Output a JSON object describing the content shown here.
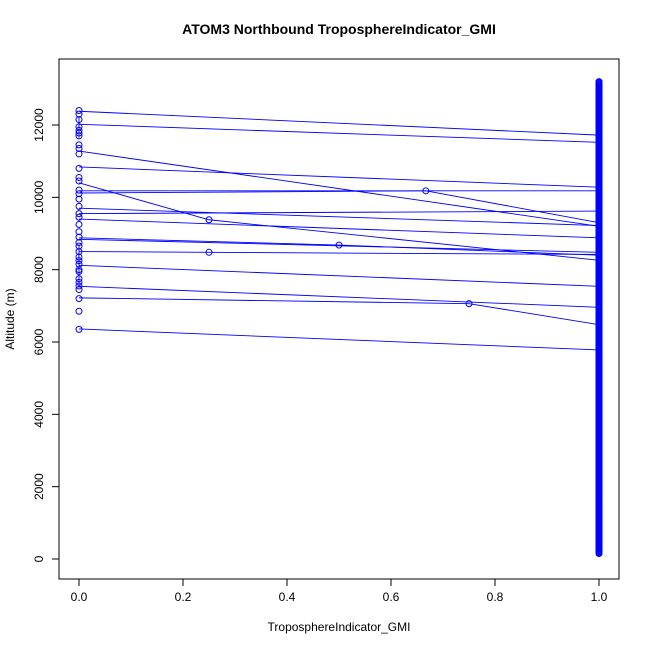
{
  "chart_data": {
    "type": "scatter",
    "title": "ATOM3 Northbound TroposphereIndicator_GMI",
    "xlabel": "TroposphereIndicator_GMI",
    "ylabel": "Altitude (m)",
    "xlim": [
      0.0,
      1.0
    ],
    "ylim": [
      0,
      13000
    ],
    "x_ticks": [
      0.0,
      0.2,
      0.4,
      0.6,
      0.8,
      1.0
    ],
    "x_tick_labels": [
      "0.0",
      "0.2",
      "0.4",
      "0.6",
      "0.8",
      "1.0"
    ],
    "y_ticks": [
      0,
      2000,
      4000,
      6000,
      8000,
      10000,
      12000
    ],
    "y_tick_labels": [
      "0",
      "2000",
      "4000",
      "6000",
      "8000",
      "10000",
      "12000"
    ],
    "grid": false,
    "legend": "none",
    "colors": {
      "series": "#0000ff",
      "axis": "#000000"
    },
    "series": [
      {
        "markers": "open-circle",
        "connected": true,
        "points": [
          [
            0.0,
            12400
          ],
          [
            0.0,
            12300
          ],
          [
            0.0,
            12150
          ],
          [
            0.0,
            11950
          ],
          [
            0.0,
            11850
          ],
          [
            0.0,
            11780
          ],
          [
            0.0,
            11700
          ],
          [
            0.0,
            11450
          ],
          [
            0.0,
            11350
          ],
          [
            0.0,
            11200
          ],
          [
            0.0,
            10800
          ],
          [
            0.0,
            10550
          ],
          [
            0.0,
            10450
          ],
          [
            0.0,
            10200
          ],
          [
            0.0,
            10100
          ],
          [
            0.0,
            9950
          ],
          [
            0.0,
            9750
          ],
          [
            0.0,
            9550
          ],
          [
            0.0,
            9450
          ],
          [
            0.0,
            9250
          ],
          [
            0.0,
            9050
          ],
          [
            0.0,
            8900
          ],
          [
            0.0,
            8750
          ],
          [
            0.0,
            8650
          ],
          [
            0.0,
            8500
          ],
          [
            0.0,
            8350
          ],
          [
            0.0,
            8250
          ],
          [
            0.0,
            8150
          ],
          [
            0.0,
            8000
          ],
          [
            0.0,
            7950
          ],
          [
            0.0,
            7750
          ],
          [
            0.0,
            7650
          ],
          [
            0.0,
            7550
          ],
          [
            0.0,
            7450
          ],
          [
            0.0,
            7200
          ],
          [
            0.0,
            6850
          ],
          [
            0.0,
            6350
          ],
          [
            0.25,
            9380
          ],
          [
            0.25,
            8480
          ],
          [
            0.5,
            8680
          ],
          [
            0.667,
            10180
          ],
          [
            0.75,
            7060
          ]
        ],
        "segments": [
          [
            [
              0.0,
              12380
            ],
            [
              1.0,
              11720
            ]
          ],
          [
            [
              0.0,
              12020
            ],
            [
              1.0,
              11520
            ]
          ],
          [
            [
              0.0,
              11280
            ],
            [
              1.0,
              9200
            ]
          ],
          [
            [
              0.0,
              10840
            ],
            [
              1.0,
              10280
            ]
          ],
          [
            [
              0.0,
              10400
            ],
            [
              0.25,
              9380
            ]
          ],
          [
            [
              0.25,
              9380
            ],
            [
              1.0,
              8260
            ]
          ],
          [
            [
              0.0,
              10180
            ],
            [
              1.0,
              10180
            ]
          ],
          [
            [
              0.0,
              10120
            ],
            [
              0.667,
              10180
            ]
          ],
          [
            [
              0.667,
              10180
            ],
            [
              1.0,
              9300
            ]
          ],
          [
            [
              0.0,
              9700
            ],
            [
              1.0,
              9220
            ]
          ],
          [
            [
              0.0,
              9550
            ],
            [
              1.0,
              9620
            ]
          ],
          [
            [
              0.0,
              9400
            ],
            [
              1.0,
              8880
            ]
          ],
          [
            [
              0.0,
              8880
            ],
            [
              0.5,
              8680
            ]
          ],
          [
            [
              0.5,
              8680
            ],
            [
              1.0,
              8400
            ]
          ],
          [
            [
              0.0,
              8840
            ],
            [
              1.0,
              8480
            ]
          ],
          [
            [
              0.0,
              8500
            ],
            [
              0.25,
              8480
            ]
          ],
          [
            [
              0.25,
              8480
            ],
            [
              1.0,
              8420
            ]
          ],
          [
            [
              0.0,
              8120
            ],
            [
              1.0,
              7540
            ]
          ],
          [
            [
              0.0,
              7540
            ],
            [
              1.0,
              6960
            ]
          ],
          [
            [
              0.0,
              7220
            ],
            [
              0.75,
              7060
            ]
          ],
          [
            [
              0.75,
              7060
            ],
            [
              1.0,
              6480
            ]
          ],
          [
            [
              0.0,
              6360
            ],
            [
              1.0,
              5780
            ]
          ],
          [
            [
              0.0,
              12250
            ],
            [
              0.0,
              11650
            ]
          ],
          [
            [
              0.0,
              8700
            ],
            [
              0.0,
              7500
            ]
          ]
        ],
        "dense_column": {
          "x": 1.0,
          "y_min": 150,
          "y_max": 13200,
          "step": 25
        }
      }
    ]
  }
}
